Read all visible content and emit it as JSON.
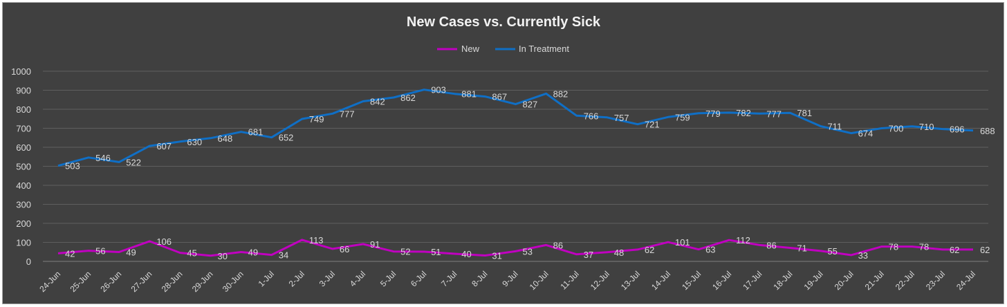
{
  "chart_data": {
    "type": "line",
    "title": "New Cases vs. Currently Sick",
    "xlabel": "",
    "ylabel": "",
    "ylim": [
      0,
      1000
    ],
    "yticks": [
      0,
      100,
      200,
      300,
      400,
      500,
      600,
      700,
      800,
      900,
      1000
    ],
    "grid": true,
    "legend_position": "top",
    "background_color": "#404040",
    "categories": [
      "24-Jun",
      "25-Jun",
      "26-Jun",
      "27-Jun",
      "28-Jun",
      "29-Jun",
      "30-Jun",
      "1-Jul",
      "2-Jul",
      "3-Jul",
      "4-Jul",
      "5-Jul",
      "6-Jul",
      "7-Jul",
      "8-Jul",
      "9-Jul",
      "10-Jul",
      "11-Jul",
      "12-Jul",
      "13-Jul",
      "14-Jul",
      "15-Jul",
      "16-Jul",
      "17-Jul",
      "18-Jul",
      "19-Jul",
      "20-Jul",
      "21-Jul",
      "22-Jul",
      "23-Jul",
      "24-Jul"
    ],
    "series": [
      {
        "name": "New",
        "color": "#c000c0",
        "values": [
          42,
          56,
          49,
          106,
          45,
          30,
          49,
          34,
          113,
          66,
          91,
          52,
          51,
          40,
          31,
          53,
          86,
          37,
          48,
          62,
          101,
          63,
          112,
          86,
          71,
          55,
          33,
          78,
          78,
          62,
          62
        ]
      },
      {
        "name": "In Treatment",
        "color": "#0f6fc6",
        "values": [
          503,
          546,
          522,
          607,
          630,
          648,
          681,
          652,
          749,
          777,
          842,
          862,
          903,
          881,
          867,
          827,
          882,
          766,
          757,
          721,
          759,
          779,
          782,
          777,
          781,
          711,
          674,
          700,
          710,
          696,
          688
        ]
      }
    ]
  }
}
